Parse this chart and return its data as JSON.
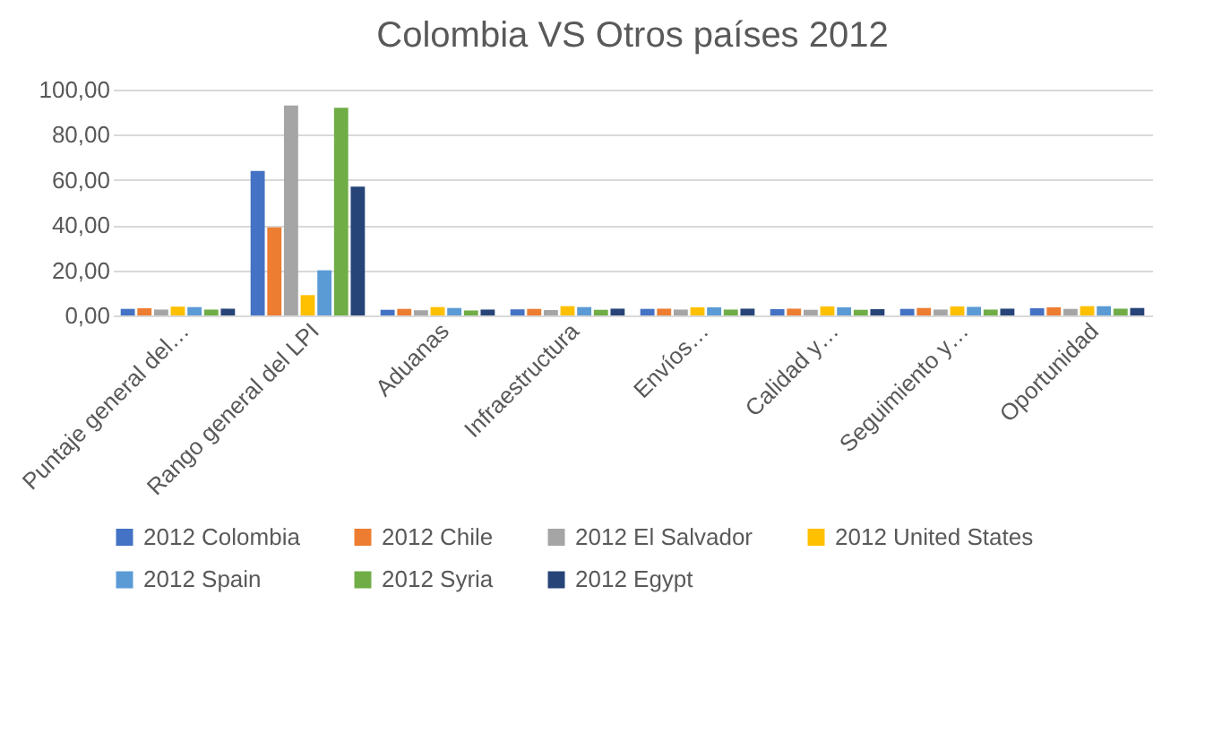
{
  "chart_data": {
    "type": "bar",
    "title": "Colombia VS Otros países 2012",
    "categories": [
      "Puntaje general del…",
      "Rango general del LPI",
      "Aduanas",
      "Infraestructura",
      "Envíos…",
      "Calidad y…",
      "Seguimiento y…",
      "Oportunidad"
    ],
    "series": [
      {
        "name": "2012 Colombia",
        "color": "#4472c4",
        "values": [
          2.9,
          64,
          2.5,
          2.7,
          2.9,
          2.8,
          2.9,
          3.2
        ]
      },
      {
        "name": "2012 Chile",
        "color": "#ed7d31",
        "values": [
          3.2,
          39,
          2.9,
          2.9,
          3.0,
          3.0,
          3.3,
          3.6
        ]
      },
      {
        "name": "2012 El Salvador",
        "color": "#a5a5a5",
        "values": [
          2.6,
          93,
          2.3,
          2.4,
          2.6,
          2.5,
          2.6,
          2.9
        ]
      },
      {
        "name": "2012 United States",
        "color": "#ffc000",
        "values": [
          3.9,
          9,
          3.7,
          4.1,
          3.6,
          4.0,
          4.0,
          4.1
        ]
      },
      {
        "name": "2012 Spain",
        "color": "#5b9bd5",
        "values": [
          3.7,
          20,
          3.3,
          3.7,
          3.6,
          3.6,
          3.8,
          4.1
        ]
      },
      {
        "name": "2012 Syria",
        "color": "#70ad47",
        "values": [
          2.6,
          92,
          2.2,
          2.5,
          2.6,
          2.5,
          2.6,
          3.0
        ]
      },
      {
        "name": "2012 Egypt",
        "color": "#264478",
        "values": [
          3.0,
          57,
          2.6,
          3.0,
          3.0,
          2.8,
          3.0,
          3.3
        ]
      }
    ],
    "ylim": [
      0,
      100
    ],
    "yticks": [
      {
        "value": 0,
        "label": "0,00"
      },
      {
        "value": 20,
        "label": "20,00"
      },
      {
        "value": 40,
        "label": "40,00"
      },
      {
        "value": 60,
        "label": "60,00"
      },
      {
        "value": 80,
        "label": "80,00"
      },
      {
        "value": 100,
        "label": "100,00"
      }
    ],
    "grid": "y",
    "legend": "bottom"
  }
}
